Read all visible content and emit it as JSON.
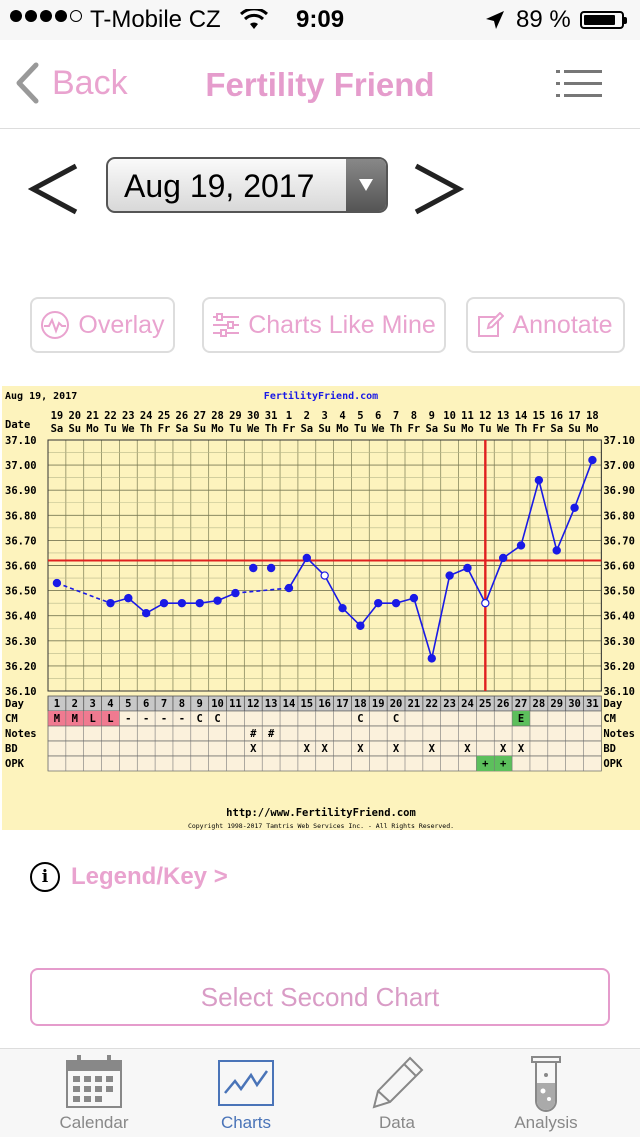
{
  "status_bar": {
    "carrier": "T-Mobile CZ",
    "time": "9:09",
    "battery": "89 %",
    "battery_level": 0.89,
    "signal_bars_filled": 4,
    "signal_bars_total": 5
  },
  "nav": {
    "back_label": "Back",
    "title": "Fertility Friend",
    "accent_color": "#e59ccc"
  },
  "date_selector": {
    "value": "Aug 19, 2017"
  },
  "actions": {
    "overlay": "Overlay",
    "charts_like_mine": "Charts Like Mine",
    "annotate": "Annotate"
  },
  "chart_data": {
    "type": "line",
    "title": "FertilityFriend.com",
    "date_label": "Aug 19, 2017",
    "row_labels": {
      "date": "Date",
      "day": "Day",
      "cm": "CM",
      "notes": "Notes",
      "bd": "BD",
      "opk": "OPK"
    },
    "dates": [
      "19",
      "20",
      "21",
      "22",
      "23",
      "24",
      "25",
      "26",
      "27",
      "28",
      "29",
      "30",
      "31",
      "1",
      "2",
      "3",
      "4",
      "5",
      "6",
      "7",
      "8",
      "9",
      "10",
      "11",
      "12",
      "13",
      "14",
      "15",
      "16",
      "17",
      "18"
    ],
    "weekdays": [
      "Sa",
      "Su",
      "Mo",
      "Tu",
      "We",
      "Th",
      "Fr",
      "Sa",
      "Su",
      "Mo",
      "Tu",
      "We",
      "Th",
      "Fr",
      "Sa",
      "Su",
      "Mo",
      "Tu",
      "We",
      "Th",
      "Fr",
      "Sa",
      "Su",
      "Mo",
      "Tu",
      "We",
      "Th",
      "Fr",
      "Sa",
      "Su",
      "Mo"
    ],
    "days": [
      1,
      2,
      3,
      4,
      5,
      6,
      7,
      8,
      9,
      10,
      11,
      12,
      13,
      14,
      15,
      16,
      17,
      18,
      19,
      20,
      21,
      22,
      23,
      24,
      25,
      26,
      27,
      28,
      29,
      30,
      31
    ],
    "temperatures": [
      36.53,
      null,
      null,
      36.45,
      36.47,
      36.41,
      36.45,
      36.45,
      36.45,
      36.46,
      36.49,
      36.59,
      36.59,
      36.51,
      36.63,
      36.56,
      36.43,
      36.36,
      36.45,
      36.45,
      36.47,
      36.23,
      36.56,
      36.59,
      36.45,
      36.63,
      36.68,
      36.94,
      36.66,
      36.83,
      37.02
    ],
    "open_points": [
      16,
      25
    ],
    "dashed_to_day": [
      4,
      14
    ],
    "disconnected_days": [
      12,
      13
    ],
    "y_ticks": [
      "37.10",
      "37.00",
      "36.90",
      "36.80",
      "36.70",
      "36.60",
      "36.50",
      "36.40",
      "36.30",
      "36.20",
      "36.10"
    ],
    "ylim": [
      36.1,
      37.1
    ],
    "coverline": 36.62,
    "ovulation_day": 25,
    "cm": [
      "M",
      "M",
      "L",
      "L",
      "-",
      "-",
      "-",
      "-",
      "C",
      "C",
      "",
      "",
      "",
      "",
      "",
      "",
      "",
      "C",
      "",
      "C",
      "",
      "",
      "",
      "",
      "",
      "",
      "E",
      "",
      "",
      "",
      ""
    ],
    "notes": [
      "",
      "",
      "",
      "",
      "",
      "",
      "",
      "",
      "",
      "",
      "",
      "#",
      "#",
      "",
      "",
      "",
      "",
      "",
      "",
      "",
      "",
      "",
      "",
      "",
      "",
      "",
      "",
      "",
      "",
      "",
      ""
    ],
    "bd": [
      "",
      "",
      "",
      "",
      "",
      "",
      "",
      "",
      "",
      "",
      "",
      "X",
      "",
      "",
      "X",
      "X",
      "",
      "X",
      "",
      "X",
      "",
      "X",
      "",
      "X",
      "",
      "X",
      "X",
      "",
      "",
      "",
      ""
    ],
    "opk": [
      "",
      "",
      "",
      "",
      "",
      "",
      "",
      "",
      "",
      "",
      "",
      "",
      "",
      "",
      "",
      "",
      "",
      "",
      "",
      "",
      "",
      "",
      "",
      "",
      "+",
      "+",
      "",
      "",
      "",
      "",
      ""
    ],
    "footer_url": "http://www.FertilityFriend.com",
    "copyright": "Copyright 1998-2017 Tamtris Web Services Inc. - All Rights Reserved.",
    "colors": {
      "line": "#1a1ae6",
      "coverline": "#e02020",
      "bg": "#fdf3bd",
      "menses": "#f07a90",
      "green": "#5cbf5c"
    }
  },
  "legend": {
    "label": "Legend/Key >"
  },
  "second_chart_button": "Select Second Chart",
  "tabs": [
    {
      "label": "Calendar",
      "icon": "calendar-icon",
      "active": false
    },
    {
      "label": "Charts",
      "icon": "charts-icon",
      "active": true
    },
    {
      "label": "Data",
      "icon": "pencil-icon",
      "active": false
    },
    {
      "label": "Analysis",
      "icon": "test-tube-icon",
      "active": false
    }
  ]
}
